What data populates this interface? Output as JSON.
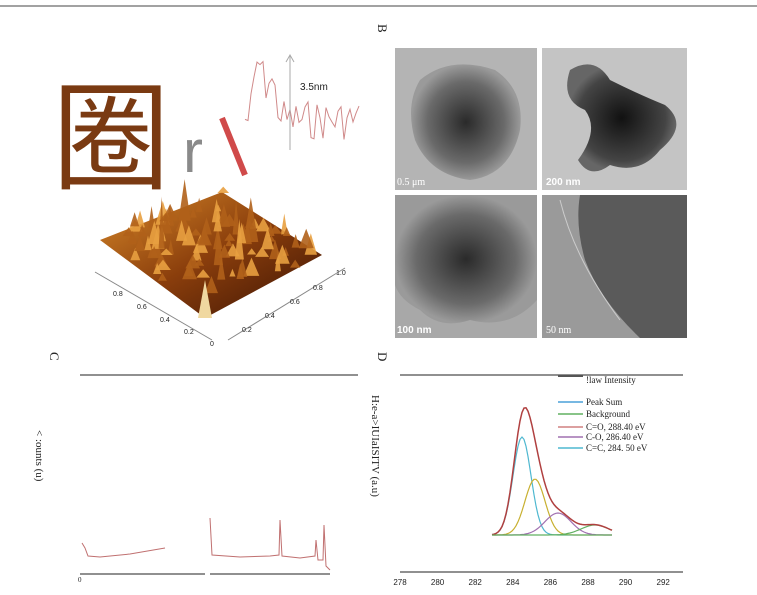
{
  "panel_a": {
    "glyph": "圈",
    "letter": "r",
    "profile_label": "3.5nm",
    "front_axis_labels": [
      "0.8",
      "0.6",
      "0.4",
      "0.2",
      "0"
    ],
    "side_axis_labels": [
      "0.2",
      "0.4",
      "0.6",
      "0.8",
      "1.0"
    ]
  },
  "panel_b": {
    "label": "B",
    "scale_bars": [
      "0.5 μm",
      "200 nm",
      "100 nm",
      "50 nm"
    ]
  },
  "panel_c": {
    "label": "C",
    "y_label": "< :ounts (u)",
    "x_start": "0"
  },
  "panel_d": {
    "label": "D",
    "y_label": "H:e-a>IUIaISITV (a.u)",
    "legend": [
      "!law  Intensity",
      "Peak  Sum",
      "Background",
      "C=O,    288.40   eV",
      "C-O,    286.40   eV",
      "C=C,    284. 50   eV"
    ],
    "x_ticks": [
      "278",
      "280",
      "282",
      "284",
      "286",
      "288",
      "290",
      "292"
    ]
  }
}
